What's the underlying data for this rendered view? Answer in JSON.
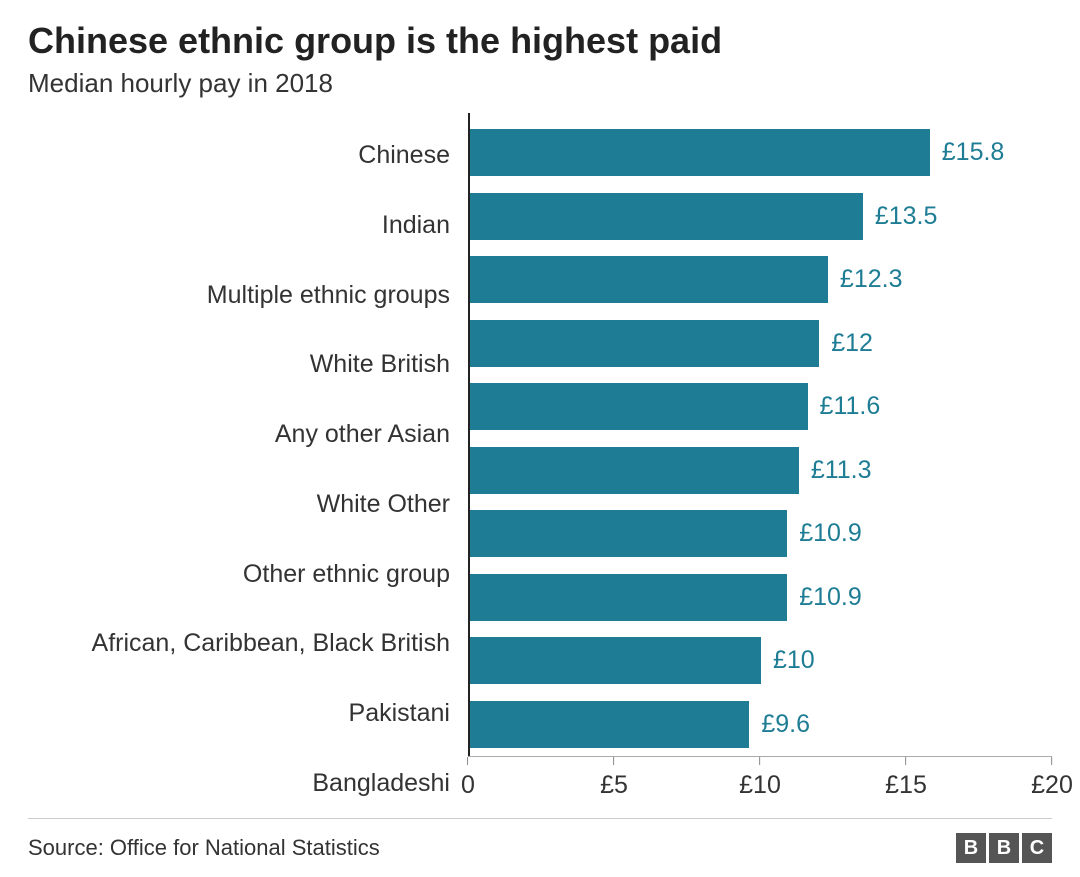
{
  "chart": {
    "type": "bar-horizontal",
    "title": "Chinese ethnic group is the highest paid",
    "subtitle": "Median hourly pay in 2018",
    "title_fontsize": 36,
    "subtitle_fontsize": 26,
    "title_color": "#222222",
    "subtitle_color": "#333333",
    "background_color": "#ffffff",
    "bar_color": "#1e7d94",
    "value_label_color": "#1e7d94",
    "value_label_fontsize": 25,
    "category_label_color": "#333333",
    "category_label_fontsize": 25,
    "currency_prefix": "£",
    "xlim": [
      0,
      20
    ],
    "xtick_step": 5,
    "xticks": [
      {
        "value": 0,
        "label": "0"
      },
      {
        "value": 5,
        "label": "£5"
      },
      {
        "value": 10,
        "label": "£10"
      },
      {
        "value": 15,
        "label": "£15"
      },
      {
        "value": 20,
        "label": "£20"
      }
    ],
    "axis_line_color": "#222222",
    "xaxis_line_color": "#aaaaaa",
    "bar_height_ratio": 0.74,
    "categories": [
      {
        "label": "Chinese",
        "value": 15.8,
        "display": "£15.8"
      },
      {
        "label": "Indian",
        "value": 13.5,
        "display": "£13.5"
      },
      {
        "label": "Multiple ethnic groups",
        "value": 12.3,
        "display": "£12.3"
      },
      {
        "label": "White British",
        "value": 12,
        "display": "£12"
      },
      {
        "label": "Any other Asian",
        "value": 11.6,
        "display": "£11.6"
      },
      {
        "label": "White Other",
        "value": 11.3,
        "display": "£11.3"
      },
      {
        "label": "Other ethnic group",
        "value": 10.9,
        "display": "£10.9"
      },
      {
        "label": "African, Caribbean, Black British",
        "value": 10.9,
        "display": "£10.9"
      },
      {
        "label": "Pakistani",
        "value": 10,
        "display": "£10"
      },
      {
        "label": "Bangladeshi",
        "value": 9.6,
        "display": "£9.6"
      }
    ]
  },
  "footer": {
    "source_text": "Source: Office for National Statistics",
    "logo_letters": [
      "B",
      "B",
      "C"
    ],
    "logo_bg": "#555555",
    "logo_fg": "#ffffff",
    "border_color": "#cccccc"
  }
}
